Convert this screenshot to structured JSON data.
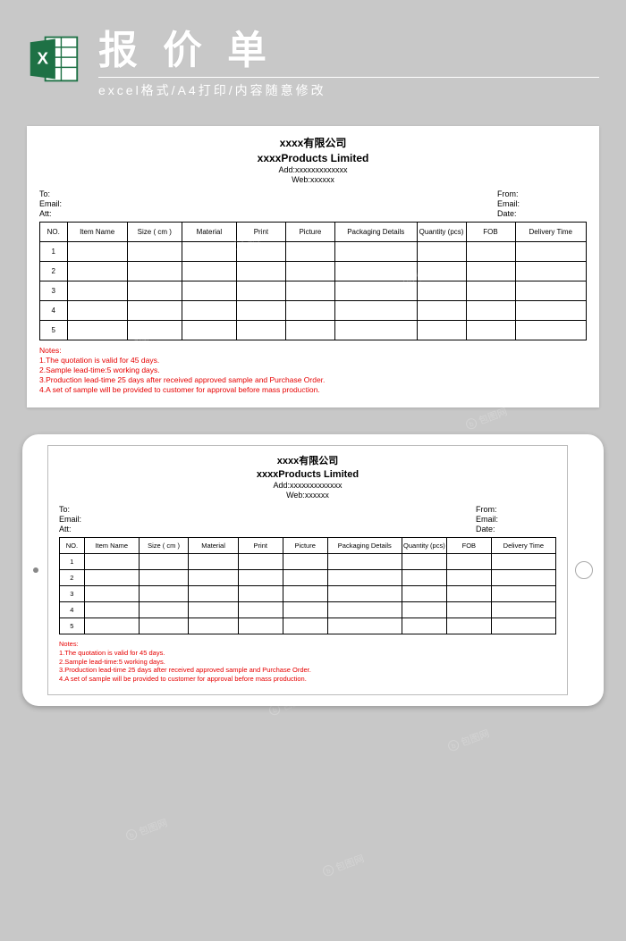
{
  "header": {
    "title": "报价单",
    "subtitle": "excel格式/A4打印/内容随意修改"
  },
  "doc": {
    "company_cn": "xxxx有限公司",
    "company_en": "xxxxProducts Limited",
    "address": "Add:xxxxxxxxxxxxx",
    "web": "Web:xxxxxx",
    "left_labels": {
      "to": "To:",
      "email": "Email:",
      "att": "Att:"
    },
    "right_labels": {
      "from": "From:",
      "email": "Email:",
      "date": "Date:"
    },
    "columns": [
      "NO.",
      "Item Name",
      "Size ( cm )",
      "Material",
      "Print",
      "Picture",
      "Packaging Details",
      "Quantity (pcs)",
      "FOB",
      "Delivery Time"
    ],
    "row_numbers": [
      "1",
      "2",
      "3",
      "4",
      "5"
    ],
    "notes_header": "Notes:",
    "notes": [
      "1.The quotation is valid for 45 days.",
      "2.Sample lead-time:5 working days.",
      "3.Production lead-time 25 days after received approved sample and Purchase Order.",
      "4.A set of sample will be provided to customer for approval before mass production."
    ]
  },
  "watermark_text": "包图网",
  "colors": {
    "background": "#c8c8c8",
    "header_text": "#ffffff",
    "notes_color": "#e60000",
    "border": "#000000",
    "excel_green": "#1e7145"
  }
}
